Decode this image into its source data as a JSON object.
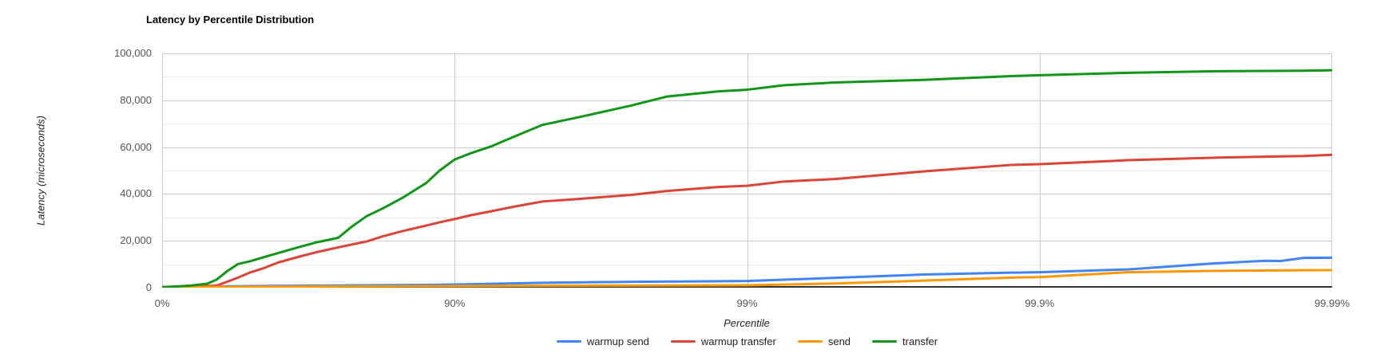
{
  "chart_data": {
    "type": "line",
    "title": "Latency by Percentile Distribution",
    "xlabel": "Percentile",
    "ylabel": "Latency (microseconds)",
    "x_scale": "logarithmic-percentile (1/(1-p)), one decade per tick",
    "ylim": [
      0,
      100000
    ],
    "y_major_step": 20000,
    "y_minor_step": 10000,
    "grid": {
      "major_color": "#cccccc",
      "minor_color": "#ebebeb",
      "baseline_color": "#333333"
    },
    "y_ticks": [
      {
        "label": "0",
        "value": 0
      },
      {
        "label": "20,000",
        "value": 20000
      },
      {
        "label": "40,000",
        "value": 40000
      },
      {
        "label": "60,000",
        "value": 60000
      },
      {
        "label": "80,000",
        "value": 80000
      },
      {
        "label": "100,000",
        "value": 100000
      }
    ],
    "x_ticks": [
      {
        "label": "0%",
        "nines": 0
      },
      {
        "label": "90%",
        "nines": 1
      },
      {
        "label": "99%",
        "nines": 2
      },
      {
        "label": "99.9%",
        "nines": 3
      },
      {
        "label": "99.99%",
        "nines": 4
      }
    ],
    "legend_position": "bottom-center",
    "series": [
      {
        "name": "warmup send",
        "color": "#4285f4",
        "points": [
          [
            0,
            150
          ],
          [
            10,
            300
          ],
          [
            25,
            450
          ],
          [
            50,
            700
          ],
          [
            75,
            950
          ],
          [
            87.5,
            1200
          ],
          [
            90,
            1350
          ],
          [
            95,
            2100
          ],
          [
            97.5,
            2500
          ],
          [
            99,
            2850
          ],
          [
            99.25,
            3400
          ],
          [
            99.5,
            4200
          ],
          [
            99.75,
            5600
          ],
          [
            99.875,
            6400
          ],
          [
            99.9,
            6600
          ],
          [
            99.95,
            7800
          ],
          [
            99.975,
            10400
          ],
          [
            99.98,
            11000
          ],
          [
            99.983,
            11500
          ],
          [
            99.985,
            11400
          ],
          [
            99.9875,
            12700
          ],
          [
            99.99,
            12800
          ]
        ]
      },
      {
        "name": "warmup transfer",
        "color": "#db4437",
        "points": [
          [
            0,
            200
          ],
          [
            10,
            350
          ],
          [
            20,
            500
          ],
          [
            30,
            700
          ],
          [
            35,
            900
          ],
          [
            40,
            2500
          ],
          [
            45,
            4300
          ],
          [
            50,
            6500
          ],
          [
            55,
            8300
          ],
          [
            60,
            10800
          ],
          [
            65,
            12800
          ],
          [
            70,
            15000
          ],
          [
            75,
            17200
          ],
          [
            77.5,
            18400
          ],
          [
            80,
            19700
          ],
          [
            82.5,
            22000
          ],
          [
            85,
            24200
          ],
          [
            87.5,
            26500
          ],
          [
            88.75,
            27900
          ],
          [
            90,
            29300
          ],
          [
            91.25,
            31000
          ],
          [
            92.5,
            32600
          ],
          [
            93.75,
            34600
          ],
          [
            95,
            36800
          ],
          [
            96.25,
            37900
          ],
          [
            97.5,
            39600
          ],
          [
            98.125,
            41300
          ],
          [
            98.75,
            43000
          ],
          [
            99,
            43500
          ],
          [
            99.25,
            45300
          ],
          [
            99.5,
            46400
          ],
          [
            99.75,
            49600
          ],
          [
            99.875,
            52400
          ],
          [
            99.9,
            52700
          ],
          [
            99.95,
            54400
          ],
          [
            99.975,
            55500
          ],
          [
            99.9875,
            56200
          ],
          [
            99.99,
            56700
          ]
        ]
      },
      {
        "name": "send",
        "color": "#ff9900",
        "points": [
          [
            0,
            150
          ],
          [
            25,
            300
          ],
          [
            50,
            400
          ],
          [
            75,
            550
          ],
          [
            90,
            700
          ],
          [
            95,
            800
          ],
          [
            97.5,
            900
          ],
          [
            99,
            1000
          ],
          [
            99.25,
            1300
          ],
          [
            99.5,
            1800
          ],
          [
            99.75,
            3000
          ],
          [
            99.875,
            4300
          ],
          [
            99.9,
            4500
          ],
          [
            99.95,
            6600
          ],
          [
            99.975,
            7200
          ],
          [
            99.99,
            7500
          ]
        ]
      },
      {
        "name": "transfer",
        "color": "#109618",
        "points": [
          [
            0,
            250
          ],
          [
            10,
            500
          ],
          [
            20,
            900
          ],
          [
            30,
            1700
          ],
          [
            35,
            3500
          ],
          [
            40,
            7000
          ],
          [
            45,
            10100
          ],
          [
            50,
            11300
          ],
          [
            55,
            13000
          ],
          [
            60,
            14800
          ],
          [
            65,
            16900
          ],
          [
            70,
            19200
          ],
          [
            75,
            21300
          ],
          [
            77.5,
            26000
          ],
          [
            80,
            30500
          ],
          [
            82.5,
            34000
          ],
          [
            85,
            38500
          ],
          [
            87.5,
            44700
          ],
          [
            88.75,
            50000
          ],
          [
            90,
            54700
          ],
          [
            91.25,
            57500
          ],
          [
            92.5,
            60300
          ],
          [
            93.75,
            64500
          ],
          [
            95,
            69500
          ],
          [
            96.25,
            72800
          ],
          [
            97.5,
            77700
          ],
          [
            98.125,
            81600
          ],
          [
            98.75,
            83800
          ],
          [
            99,
            84500
          ],
          [
            99.25,
            86400
          ],
          [
            99.5,
            87600
          ],
          [
            99.75,
            88700
          ],
          [
            99.875,
            90300
          ],
          [
            99.9,
            90700
          ],
          [
            99.95,
            91700
          ],
          [
            99.975,
            92400
          ],
          [
            99.9875,
            92600
          ],
          [
            99.99,
            92800
          ]
        ]
      }
    ]
  }
}
